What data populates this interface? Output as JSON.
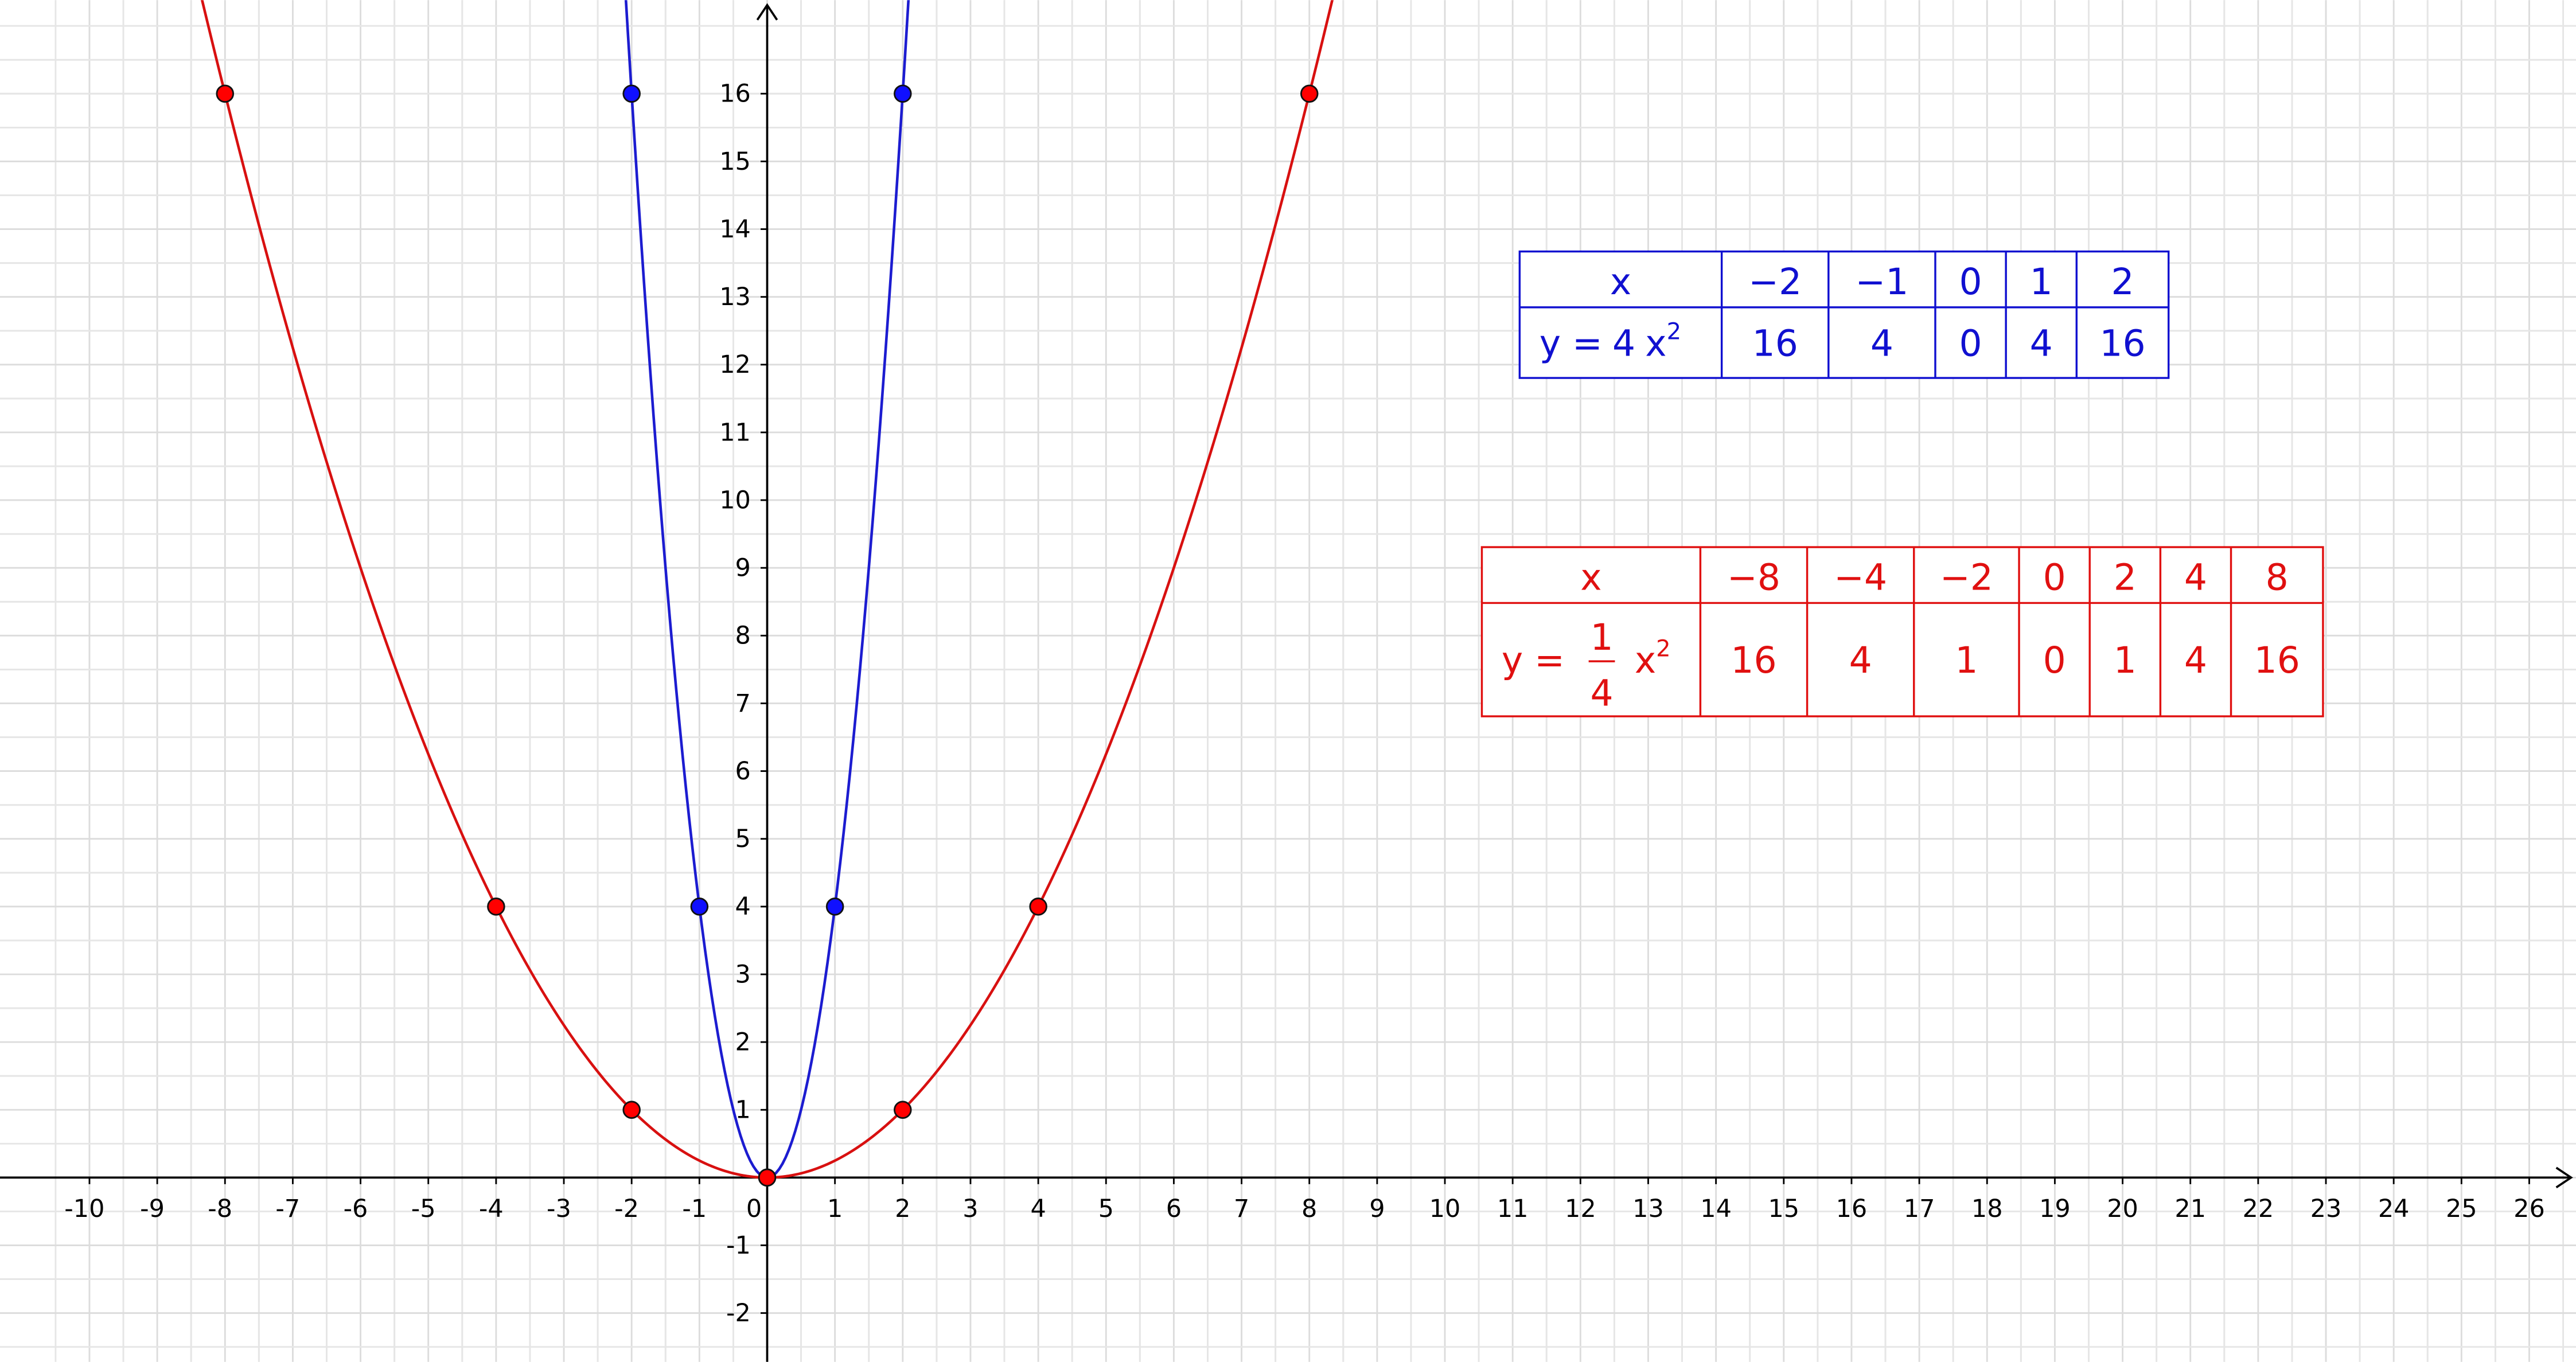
{
  "chart_data": {
    "type": "function",
    "xlim": [
      -11.32,
      26.69
    ],
    "ylim": [
      -2.72,
      17.38
    ],
    "xticks": [
      -10,
      -9,
      -8,
      -7,
      -6,
      -5,
      -4,
      -3,
      -2,
      -1,
      0,
      1,
      2,
      3,
      4,
      5,
      6,
      7,
      8,
      9,
      10,
      11,
      12,
      13,
      14,
      15,
      16,
      17,
      18,
      19,
      20,
      21,
      22,
      23,
      24,
      25,
      26
    ],
    "yticks": [
      -2,
      -1,
      1,
      2,
      3,
      4,
      5,
      6,
      7,
      8,
      9,
      10,
      11,
      12,
      13,
      14,
      15,
      16
    ],
    "grid": true,
    "series": [
      {
        "color": "#1c1cd0",
        "point_color": "#1010ff",
        "coefficient": 4,
        "x": [
          -2,
          -1,
          0,
          1,
          2
        ],
        "values": [
          16,
          4,
          0,
          4,
          16
        ]
      },
      {
        "color": "#d81010",
        "point_color": "#ff0000",
        "coefficient": 0.25,
        "x": [
          -8,
          -4,
          -2,
          0,
          2,
          4,
          8
        ],
        "values": [
          16,
          4,
          1,
          0,
          1,
          4,
          16
        ]
      }
    ],
    "tables": [
      {
        "color": "#1010d0",
        "label": {
          "lhs": "y =",
          "coef": "4",
          "var": "x",
          "exp": "2"
        },
        "header": [
          "x",
          "−2",
          "−1",
          "0",
          "1",
          "2"
        ],
        "row": [
          "16",
          "4",
          "0",
          "4",
          "16"
        ]
      },
      {
        "color": "#e01010",
        "label": {
          "lhs": "y =",
          "num": "1",
          "den": "4",
          "var": "x",
          "exp": "2"
        },
        "header": [
          "x",
          "−8",
          "−4",
          "−2",
          "0",
          "2",
          "4",
          "8"
        ],
        "row": [
          "16",
          "4",
          "1",
          "0",
          "1",
          "4",
          "16"
        ]
      }
    ]
  }
}
